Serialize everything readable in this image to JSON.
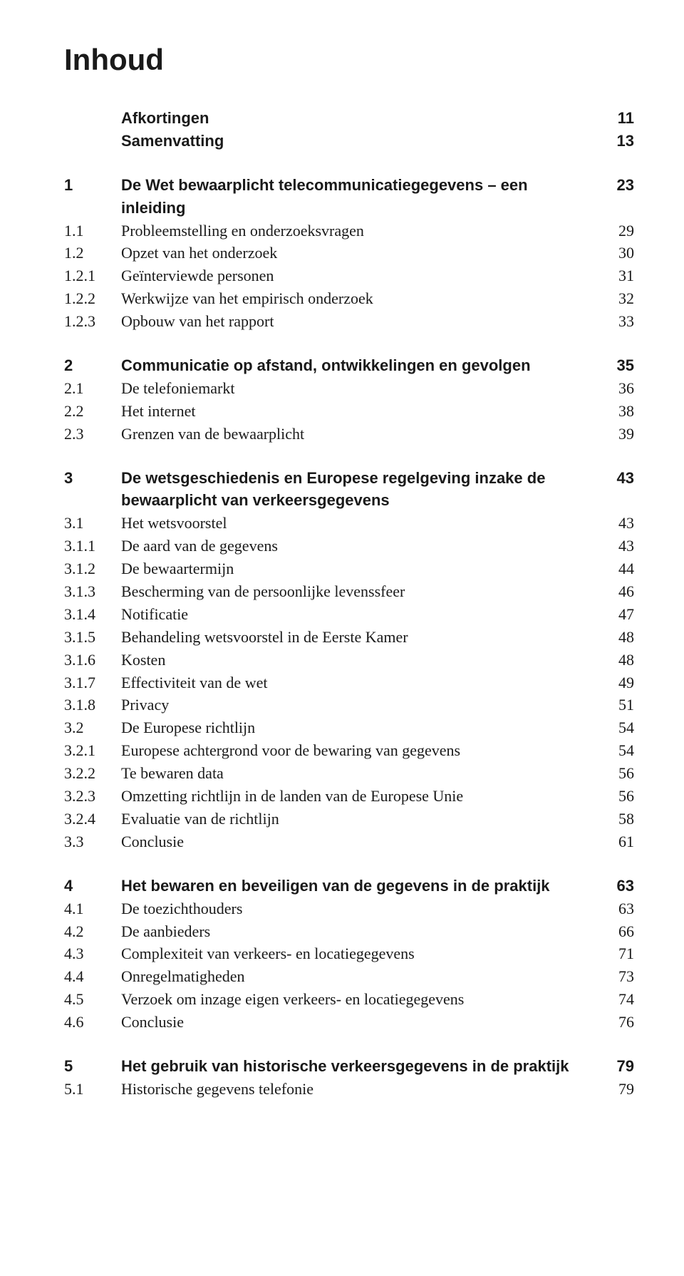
{
  "title": "Inhoud",
  "colors": {
    "text": "#1a1a1a",
    "background": "#ffffff"
  },
  "typography": {
    "title_fontsize": 42,
    "body_fontsize": 22,
    "heading_font": "Arial/Helvetica (sans-serif bold)",
    "body_font": "Georgia/Times (serif)"
  },
  "blocks": [
    {
      "rows": [
        {
          "num": "",
          "title": "Afkortingen",
          "page": "11",
          "bold": true
        },
        {
          "num": "",
          "title": "Samenvatting",
          "page": "13",
          "bold": true
        }
      ]
    },
    {
      "rows": [
        {
          "num": "1",
          "title": "De Wet bewaarplicht telecommunicatiegegevens – een inleiding",
          "page": "23",
          "bold": true
        },
        {
          "num": "1.1",
          "title": "Probleemstelling en onderzoeksvragen",
          "page": "29",
          "bold": false
        },
        {
          "num": "1.2",
          "title": "Opzet van het onderzoek",
          "page": "30",
          "bold": false
        },
        {
          "num": "1.2.1",
          "title": "Geïnterviewde personen",
          "page": "31",
          "bold": false
        },
        {
          "num": "1.2.2",
          "title": "Werkwijze van het empirisch onderzoek",
          "page": "32",
          "bold": false
        },
        {
          "num": "1.2.3",
          "title": "Opbouw van het rapport",
          "page": "33",
          "bold": false
        }
      ]
    },
    {
      "rows": [
        {
          "num": "2",
          "title": "Communicatie op afstand, ontwikkelingen en gevolgen",
          "page": "35",
          "bold": true
        },
        {
          "num": "2.1",
          "title": "De telefoniemarkt",
          "page": "36",
          "bold": false
        },
        {
          "num": "2.2",
          "title": "Het internet",
          "page": "38",
          "bold": false
        },
        {
          "num": "2.3",
          "title": "Grenzen van de bewaarplicht",
          "page": "39",
          "bold": false
        }
      ]
    },
    {
      "rows": [
        {
          "num": "3",
          "title": "De wetsgeschiedenis en Europese regelgeving inzake de bewaarplicht van verkeersgegevens",
          "page": "43",
          "bold": true
        },
        {
          "num": "3.1",
          "title": "Het wetsvoorstel",
          "page": "43",
          "bold": false
        },
        {
          "num": "3.1.1",
          "title": "De aard van de gegevens",
          "page": "43",
          "bold": false
        },
        {
          "num": "3.1.2",
          "title": "De bewaartermijn",
          "page": "44",
          "bold": false
        },
        {
          "num": "3.1.3",
          "title": "Bescherming van de persoonlijke levenssfeer",
          "page": "46",
          "bold": false
        },
        {
          "num": "3.1.4",
          "title": "Notificatie",
          "page": "47",
          "bold": false
        },
        {
          "num": "3.1.5",
          "title": "Behandeling wetsvoorstel in de Eerste Kamer",
          "page": "48",
          "bold": false
        },
        {
          "num": "3.1.6",
          "title": "Kosten",
          "page": "48",
          "bold": false
        },
        {
          "num": "3.1.7",
          "title": "Effectiviteit van de wet",
          "page": "49",
          "bold": false
        },
        {
          "num": "3.1.8",
          "title": "Privacy",
          "page": "51",
          "bold": false
        },
        {
          "num": "3.2",
          "title": "De Europese richtlijn",
          "page": "54",
          "bold": false
        },
        {
          "num": "3.2.1",
          "title": "Europese achtergrond voor de bewaring van gegevens",
          "page": "54",
          "bold": false
        },
        {
          "num": "3.2.2",
          "title": "Te bewaren data",
          "page": "56",
          "bold": false
        },
        {
          "num": "3.2.3",
          "title": "Omzetting richtlijn in de landen van de Europese Unie",
          "page": "56",
          "bold": false
        },
        {
          "num": "3.2.4",
          "title": "Evaluatie van de richtlijn",
          "page": "58",
          "bold": false
        },
        {
          "num": "3.3",
          "title": "Conclusie",
          "page": "61",
          "bold": false
        }
      ]
    },
    {
      "rows": [
        {
          "num": "4",
          "title": "Het bewaren en beveiligen van de gegevens in de praktijk",
          "page": "63",
          "bold": true
        },
        {
          "num": "4.1",
          "title": "De toezichthouders",
          "page": "63",
          "bold": false
        },
        {
          "num": "4.2",
          "title": "De aanbieders",
          "page": "66",
          "bold": false
        },
        {
          "num": "4.3",
          "title": "Complexiteit van verkeers- en locatiegegevens",
          "page": "71",
          "bold": false
        },
        {
          "num": "4.4",
          "title": "Onregelmatigheden",
          "page": "73",
          "bold": false
        },
        {
          "num": "4.5",
          "title": "Verzoek om inzage eigen verkeers- en locatiegegevens",
          "page": "74",
          "bold": false
        },
        {
          "num": "4.6",
          "title": "Conclusie",
          "page": "76",
          "bold": false
        }
      ]
    },
    {
      "rows": [
        {
          "num": "5",
          "title": "Het gebruik van historische verkeersgegevens in de praktijk",
          "page": "79",
          "bold": true
        },
        {
          "num": "5.1",
          "title": "Historische gegevens telefonie",
          "page": "79",
          "bold": false
        }
      ]
    }
  ]
}
